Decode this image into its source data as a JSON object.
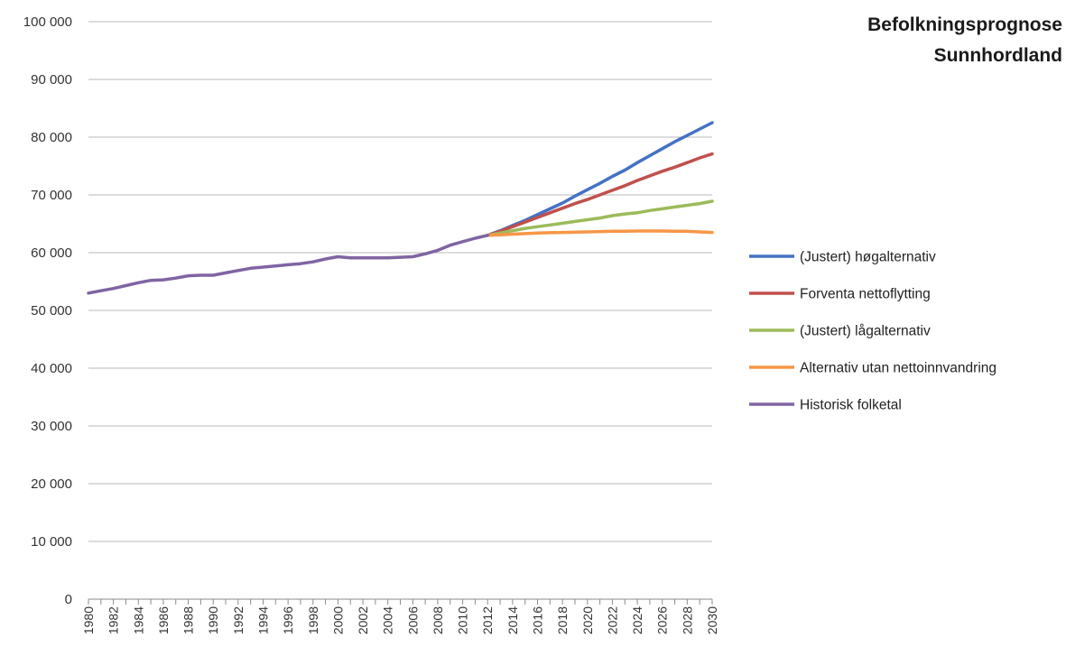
{
  "chart_data": {
    "type": "line",
    "title_lines": [
      "Befolkningsprognose",
      "Sunnhordland"
    ],
    "xlabel": "",
    "ylabel": "",
    "xlim": [
      1980,
      2030
    ],
    "ylim": [
      0,
      100000
    ],
    "y_ticks": [
      0,
      10000,
      20000,
      30000,
      40000,
      50000,
      60000,
      70000,
      80000,
      90000,
      100000
    ],
    "y_tick_labels": [
      "0",
      "10 000",
      "20 000",
      "30 000",
      "40 000",
      "50 000",
      "60 000",
      "70 000",
      "80 000",
      "90 000",
      "100 000"
    ],
    "x_tick_labels": [
      "1980",
      "1982",
      "1984",
      "1986",
      "1988",
      "1990",
      "1992",
      "1994",
      "1996",
      "1998",
      "2000",
      "2002",
      "2004",
      "2006",
      "2008",
      "2010",
      "2012",
      "2014",
      "2016",
      "2018",
      "2020",
      "2022",
      "2024",
      "2026",
      "2028",
      "2030"
    ],
    "grid": "horizontal",
    "legend_position": "right",
    "series": [
      {
        "name": "(Justert) høgalternativ",
        "color": "#4472C4",
        "x": [
          2012,
          2013,
          2014,
          2015,
          2016,
          2017,
          2018,
          2019,
          2020,
          2021,
          2022,
          2023,
          2024,
          2025,
          2026,
          2027,
          2028,
          2029,
          2030
        ],
        "y": [
          63000,
          63800,
          64700,
          65600,
          66600,
          67600,
          68600,
          69800,
          70900,
          72000,
          73200,
          74300,
          75600,
          76800,
          78000,
          79200,
          80300,
          81400,
          82500
        ]
      },
      {
        "name": "Forventa nettoflytting",
        "color": "#C0504D",
        "x": [
          2012,
          2013,
          2014,
          2015,
          2016,
          2017,
          2018,
          2019,
          2020,
          2021,
          2022,
          2023,
          2024,
          2025,
          2026,
          2027,
          2028,
          2029,
          2030
        ],
        "y": [
          63000,
          63700,
          64500,
          65300,
          66100,
          66900,
          67700,
          68500,
          69200,
          70000,
          70800,
          71600,
          72500,
          73300,
          74100,
          74800,
          75600,
          76400,
          77100
        ]
      },
      {
        "name": "(Justert) lågalternativ",
        "color": "#9BBB59",
        "x": [
          2012,
          2013,
          2014,
          2015,
          2016,
          2017,
          2018,
          2019,
          2020,
          2021,
          2022,
          2023,
          2024,
          2025,
          2026,
          2027,
          2028,
          2029,
          2030
        ],
        "y": [
          63000,
          63400,
          63800,
          64200,
          64500,
          64800,
          65100,
          65400,
          65700,
          66000,
          66400,
          66700,
          66900,
          67300,
          67600,
          67900,
          68200,
          68500,
          68900
        ]
      },
      {
        "name": "Alternativ utan nettoinnvandring",
        "color": "#F79646",
        "x": [
          2012,
          2013,
          2014,
          2015,
          2016,
          2017,
          2018,
          2019,
          2020,
          2021,
          2022,
          2023,
          2024,
          2025,
          2026,
          2027,
          2028,
          2029,
          2030
        ],
        "y": [
          63000,
          63100,
          63200,
          63300,
          63400,
          63450,
          63500,
          63550,
          63600,
          63650,
          63700,
          63700,
          63750,
          63750,
          63750,
          63700,
          63700,
          63600,
          63500
        ]
      },
      {
        "name": "Historisk folketal",
        "color": "#8064A2",
        "x": [
          1980,
          1981,
          1982,
          1983,
          1984,
          1985,
          1986,
          1987,
          1988,
          1989,
          1990,
          1991,
          1992,
          1993,
          1994,
          1995,
          1996,
          1997,
          1998,
          1999,
          2000,
          2001,
          2002,
          2003,
          2004,
          2005,
          2006,
          2007,
          2008,
          2009,
          2010,
          2011,
          2012
        ],
        "y": [
          53000,
          53400,
          53800,
          54300,
          54800,
          55200,
          55300,
          55600,
          56000,
          56100,
          56100,
          56500,
          56900,
          57300,
          57500,
          57700,
          57900,
          58100,
          58400,
          58900,
          59300,
          59100,
          59100,
          59100,
          59100,
          59200,
          59300,
          59800,
          60400,
          61300,
          61900,
          62500,
          63000
        ]
      }
    ]
  }
}
